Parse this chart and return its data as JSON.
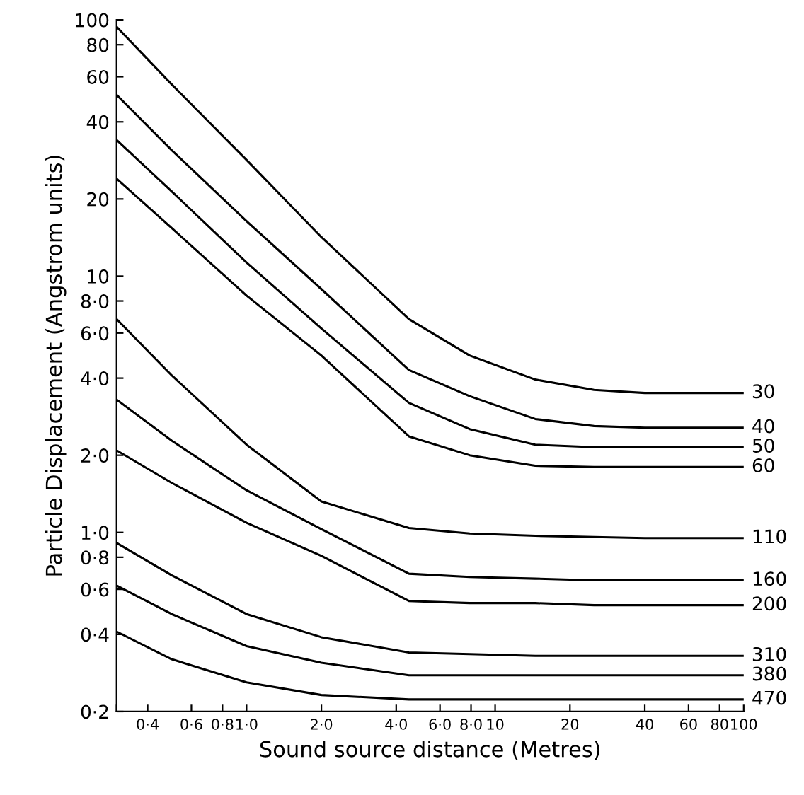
{
  "chart_data": {
    "type": "line",
    "xlabel": "Sound source distance (Metres)",
    "ylabel": "Particle Displacement (Angstrom units)",
    "log": "xy",
    "grid": false,
    "legend": false,
    "marker": "none",
    "line_style": "solid",
    "x": [
      0.3,
      0.5,
      1,
      2,
      4.5,
      7.9,
      14.5,
      25,
      40,
      100
    ],
    "xlim": [
      0.3,
      100
    ],
    "ylim": [
      0.2,
      100
    ],
    "xticks": [
      {
        "value": 0.3,
        "label": null
      },
      {
        "value": 0.4,
        "label": "0·4"
      },
      {
        "value": 0.6,
        "label": "0·6"
      },
      {
        "value": 0.8,
        "label": "0·8"
      },
      {
        "value": 1,
        "label": "1·0"
      },
      {
        "value": 2,
        "label": "2·0"
      },
      {
        "value": 4,
        "label": "4·0"
      },
      {
        "value": 6,
        "label": "6·0"
      },
      {
        "value": 8,
        "label": "8·0"
      },
      10,
      20,
      40,
      60,
      80,
      100
    ],
    "yticks": [
      {
        "value": 0.2,
        "label": "0·2"
      },
      {
        "value": 0.4,
        "label": "0·4"
      },
      {
        "value": 0.6,
        "label": "0·6"
      },
      {
        "value": 0.8,
        "label": "0·8"
      },
      {
        "value": 1,
        "label": "1·0"
      },
      {
        "value": 2,
        "label": "2·0"
      },
      {
        "value": 4,
        "label": "4·0"
      },
      {
        "value": 6,
        "label": "6·0"
      },
      {
        "value": 8,
        "label": "8·0"
      },
      10,
      20,
      40,
      60,
      80,
      100
    ],
    "series": [
      {
        "name": "30",
        "color": "#000000",
        "values": [
          94,
          56,
          28.4,
          14.2,
          6.8,
          4.9,
          3.95,
          3.6,
          3.5,
          3.5
        ]
      },
      {
        "name": "40",
        "color": "#000000",
        "values": [
          51,
          31,
          16.4,
          8.9,
          4.3,
          3.4,
          2.77,
          2.6,
          2.56,
          2.56
        ]
      },
      {
        "name": "50",
        "color": "#000000",
        "values": [
          34,
          21.4,
          11.3,
          6.25,
          3.2,
          2.53,
          2.2,
          2.15,
          2.15,
          2.15
        ]
      },
      {
        "name": "60",
        "color": "#000000",
        "values": [
          24,
          15.4,
          8.4,
          4.9,
          2.37,
          2.0,
          1.82,
          1.8,
          1.8,
          1.8
        ]
      },
      {
        "name": "110",
        "color": "#000000",
        "values": [
          6.8,
          4.1,
          2.2,
          1.32,
          1.04,
          0.99,
          0.97,
          0.96,
          0.95,
          0.95
        ]
      },
      {
        "name": "160",
        "color": "#000000",
        "values": [
          3.3,
          2.28,
          1.46,
          1.03,
          0.69,
          0.67,
          0.66,
          0.65,
          0.65,
          0.65
        ]
      },
      {
        "name": "200",
        "color": "#000000",
        "values": [
          2.09,
          1.56,
          1.09,
          0.81,
          0.54,
          0.53,
          0.53,
          0.52,
          0.52,
          0.52
        ]
      },
      {
        "name": "310",
        "color": "#000000",
        "values": [
          0.91,
          0.68,
          0.48,
          0.39,
          0.34,
          0.335,
          0.33,
          0.33,
          0.33,
          0.33
        ]
      },
      {
        "name": "380",
        "color": "#000000",
        "values": [
          0.62,
          0.48,
          0.36,
          0.31,
          0.277,
          0.277,
          0.277,
          0.277,
          0.277,
          0.277
        ]
      },
      {
        "name": "470",
        "color": "#000000",
        "values": [
          0.41,
          0.32,
          0.26,
          0.232,
          0.223,
          0.223,
          0.223,
          0.223,
          0.223,
          0.223
        ]
      }
    ]
  }
}
